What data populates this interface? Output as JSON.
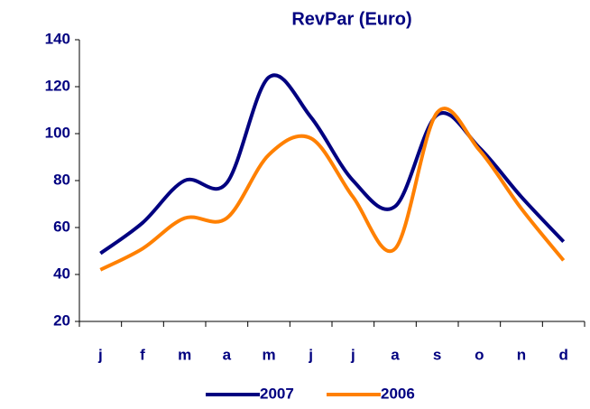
{
  "chart_data": {
    "type": "line",
    "title": "RevPar (Euro)",
    "categories": [
      "j",
      "f",
      "m",
      "a",
      "m",
      "j",
      "j",
      "a",
      "s",
      "o",
      "n",
      "d"
    ],
    "series": [
      {
        "name": "2007",
        "color": "#000080",
        "values": [
          49,
          62,
          80,
          79,
          124,
          107,
          80,
          69,
          108,
          94,
          73,
          54
        ]
      },
      {
        "name": "2006",
        "color": "#ff8000",
        "values": [
          42,
          51,
          64,
          64,
          91,
          98,
          73,
          51,
          109,
          93,
          68,
          46
        ]
      }
    ],
    "ylim": [
      20,
      140
    ],
    "yticks": [
      20,
      40,
      60,
      80,
      100,
      120,
      140
    ],
    "grid": false,
    "legend": "bottom",
    "smooth": true
  }
}
